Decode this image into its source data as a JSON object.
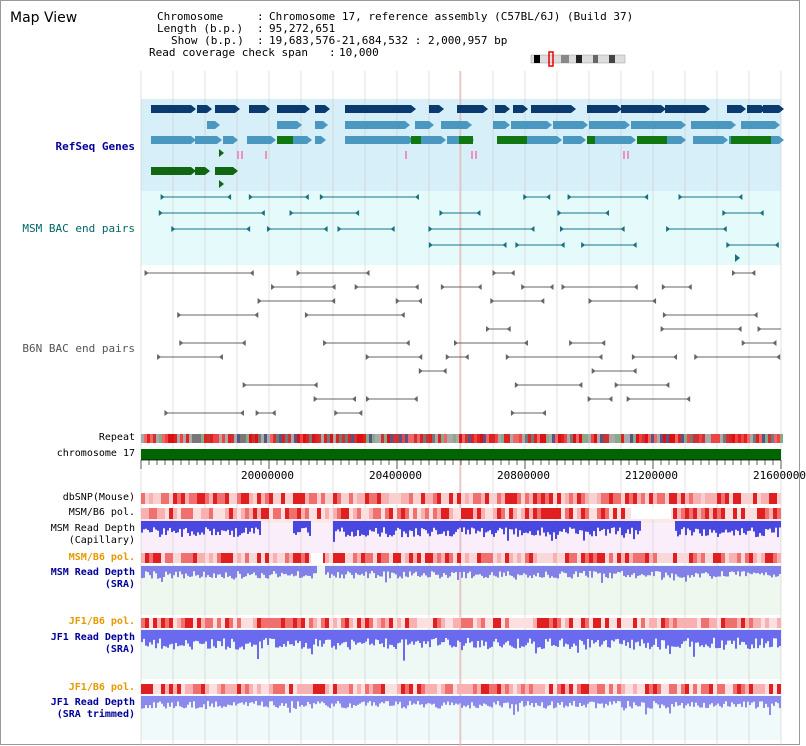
{
  "page": {
    "title": "Map View"
  },
  "header": {
    "chromosome_key": "Chromosome",
    "chromosome_val": "Chromosome 17, reference assembly (C57BL/6J) (Build 37)",
    "length_key": "Length (b.p.)",
    "length_val": "95,272,651",
    "show_key": "Show (b.p.)",
    "show_val": "19,683,576-21,684,532 : 2,000,957 bp",
    "span_key": "Read coverage check span",
    "span_val": "10,000"
  },
  "tracks": {
    "refseq": {
      "label": "RefSeq Genes",
      "color": "#000099"
    },
    "msm_bac": {
      "label": "MSM BAC end pairs",
      "color": "#006666"
    },
    "b6n_bac": {
      "label": "B6N BAC end pairs",
      "color": "#555555"
    },
    "repeat": {
      "label": "Repeat"
    },
    "chrom": {
      "label": "chromosome 17"
    }
  },
  "axis": {
    "ticks": [
      "20000000",
      "20400000",
      "20800000",
      "21200000",
      "21600000"
    ]
  },
  "lower_tracks": {
    "dbsnp": {
      "label": "dbSNP(Mouse)",
      "color": "#000000"
    },
    "msm_b6_pol_1": {
      "label": "MSM/B6 pol.",
      "color": "#000000"
    },
    "msm_cap_1": {
      "label": "MSM Read Depth",
      "color": "#000000"
    },
    "msm_cap_2": {
      "label": "(Capillary)",
      "color": "#000000"
    },
    "msm_b6_pol_2": {
      "label": "MSM/B6 pol.",
      "color": "#e69900"
    },
    "msm_sra_1": {
      "label": "MSM Read Depth",
      "color": "#000099"
    },
    "msm_sra_2": {
      "label": "(SRA)",
      "color": "#000099"
    },
    "jf1_b6_pol_1": {
      "label": "JF1/B6 pol.",
      "color": "#e69900"
    },
    "jf1_sra_1": {
      "label": "JF1 Read Depth",
      "color": "#000099"
    },
    "jf1_sra_2": {
      "label": "(SRA)",
      "color": "#000099"
    },
    "jf1_b6_pol_2": {
      "label": "JF1/B6 pol.",
      "color": "#e69900"
    },
    "jf1_trim_1": {
      "label": "JF1 Read Depth",
      "color": "#000099"
    },
    "jf1_trim_2": {
      "label": "(SRA trimmed)",
      "color": "#000099"
    }
  }
}
